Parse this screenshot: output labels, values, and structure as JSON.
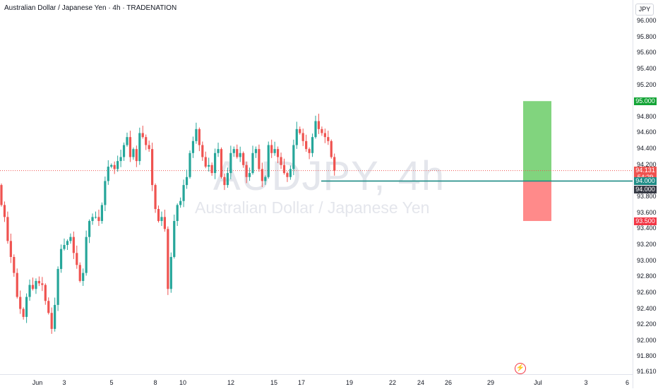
{
  "header": {
    "symbol_title": "Australian Dollar / Japanese Yen · 4h · TRADENATION",
    "currency": "JPY"
  },
  "watermark": {
    "symbol": "AUDJPY, 4h",
    "description": "Australian Dollar / Japanese Yen"
  },
  "price_axis": {
    "ticks": [
      "96.000",
      "95.800",
      "95.600",
      "95.400",
      "95.200",
      "95.000",
      "94.800",
      "94.600",
      "94.400",
      "94.200",
      "94.000",
      "93.800",
      "93.600",
      "93.400",
      "93.200",
      "93.000",
      "92.800",
      "92.600",
      "92.400",
      "92.200",
      "92.000",
      "91.800",
      "91.610"
    ]
  },
  "time_axis": {
    "labels": [
      "Jun",
      "3",
      "5",
      "8",
      "10",
      "12",
      "15",
      "17",
      "19",
      "22",
      "24",
      "26",
      "29",
      "Jul",
      "3",
      "6"
    ]
  },
  "price_tags": {
    "take_profit": "95.000",
    "current_price": "94.131",
    "countdown": "54:29",
    "entry_level": "94.000",
    "crosshair_level": "94.000",
    "stop_loss": "93.500"
  },
  "colors": {
    "up": "#26a69a",
    "down": "#ef5350",
    "profit_zone": "#81d47e",
    "loss_zone": "#ff8a8a",
    "horizontal_line": "#1e8c86",
    "take_profit_tag": "#13a436",
    "stop_loss_tag": "#f23645",
    "current_price_tag": "#ef5350",
    "dark_tag": "#363a45"
  },
  "icons": {
    "brand": "tradingview-logo-icon"
  },
  "chart_data": {
    "type": "candlestick",
    "timeframe": "4h",
    "price_range": [
      91.61,
      96.0
    ],
    "horizontal_line": 94.0,
    "long_position": {
      "entry": 94.0,
      "take_profit": 95.0,
      "stop_loss": 93.5
    },
    "closes": [
      93.7,
      93.55,
      93.25,
      93.05,
      92.85,
      92.55,
      92.4,
      92.3,
      92.55,
      92.7,
      92.65,
      92.75,
      92.72,
      92.7,
      92.5,
      92.35,
      92.15,
      92.45,
      92.9,
      93.15,
      93.2,
      93.25,
      93.3,
      93.1,
      92.95,
      92.75,
      92.85,
      93.3,
      93.5,
      93.55,
      93.55,
      93.5,
      93.7,
      94.0,
      94.18,
      94.2,
      94.15,
      94.25,
      94.3,
      94.45,
      94.55,
      94.3,
      94.4,
      94.25,
      94.6,
      94.55,
      94.45,
      94.4,
      93.95,
      93.65,
      93.5,
      93.55,
      93.4,
      92.65,
      93.05,
      93.5,
      93.7,
      93.75,
      93.95,
      94.05,
      94.35,
      94.5,
      94.65,
      94.45,
      94.3,
      94.18,
      94.2,
      94.1,
      94.35,
      94.4,
      94.05,
      93.95,
      94.1,
      94.35,
      94.4,
      94.3,
      94.35,
      94.2,
      94.05,
      94.1,
      94.35,
      94.4,
      94.15,
      94.0,
      94.05,
      94.45,
      94.35,
      94.4,
      94.3,
      94.2,
      94.1,
      94.05,
      94.15,
      94.45,
      94.65,
      94.6,
      94.5,
      94.4,
      94.35,
      94.55,
      94.75,
      94.65,
      94.6,
      94.55,
      94.5,
      94.3,
      94.13
    ],
    "last_price": 94.131
  }
}
